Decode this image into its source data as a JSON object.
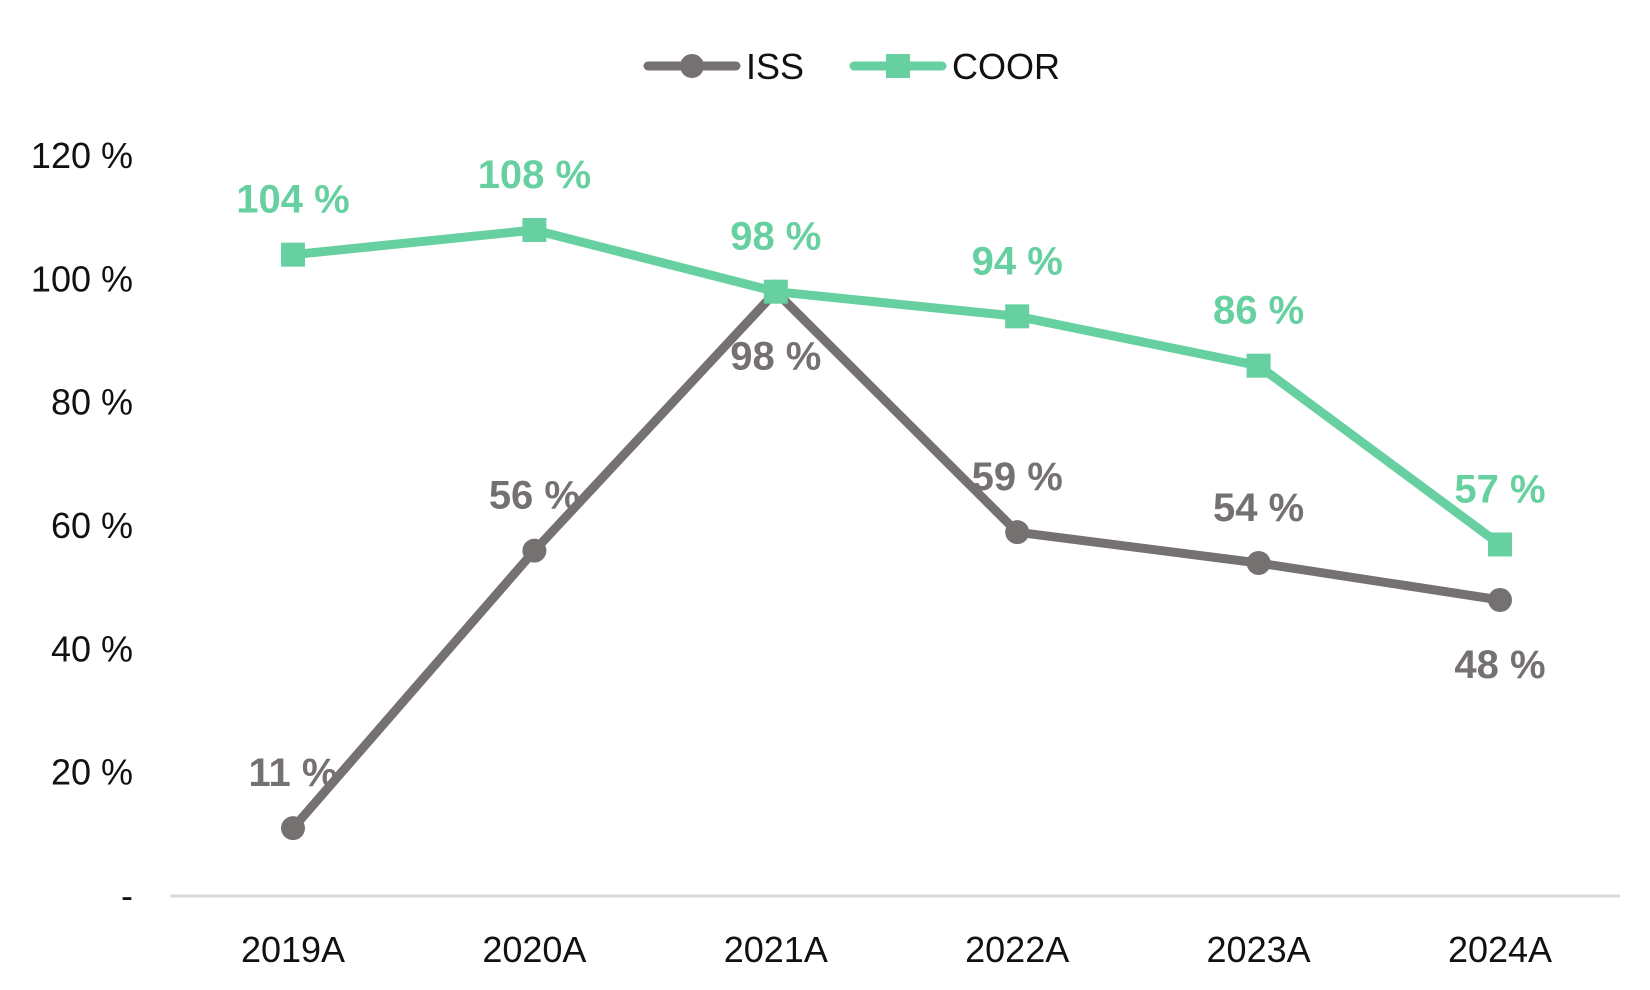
{
  "chart_data": {
    "type": "line",
    "title": "",
    "xlabel": "",
    "ylabel": "",
    "categories": [
      "2019A",
      "2020A",
      "2021A",
      "2022A",
      "2023A",
      "2024A"
    ],
    "series": [
      {
        "name": "ISS",
        "values": [
          11,
          56,
          98,
          59,
          54,
          48
        ],
        "labels": [
          "11 %",
          "56 %",
          "98 %",
          "59 %",
          "54 %",
          "48 %"
        ],
        "label_positions": [
          "above",
          "above",
          "below",
          "above",
          "above",
          "below"
        ],
        "color": "#767171",
        "marker": "circle"
      },
      {
        "name": "COOR",
        "values": [
          104,
          108,
          98,
          94,
          86,
          57
        ],
        "labels": [
          "104 %",
          "108 %",
          "98 %",
          "94 %",
          "86 %",
          "57 %"
        ],
        "label_positions": [
          "above",
          "above",
          "above",
          "above",
          "above",
          "above"
        ],
        "color": "#66D0A0",
        "marker": "square"
      }
    ],
    "ylim": [
      0,
      120
    ],
    "yticks": [
      0,
      20,
      40,
      60,
      80,
      100,
      120
    ],
    "ytick_labels": [
      "-",
      "20 %",
      "40 %",
      "60 %",
      "80 %",
      "100 %",
      "120 %"
    ],
    "grid": false,
    "legend_position": "top-center",
    "axis_color": "#D9D9D9"
  }
}
